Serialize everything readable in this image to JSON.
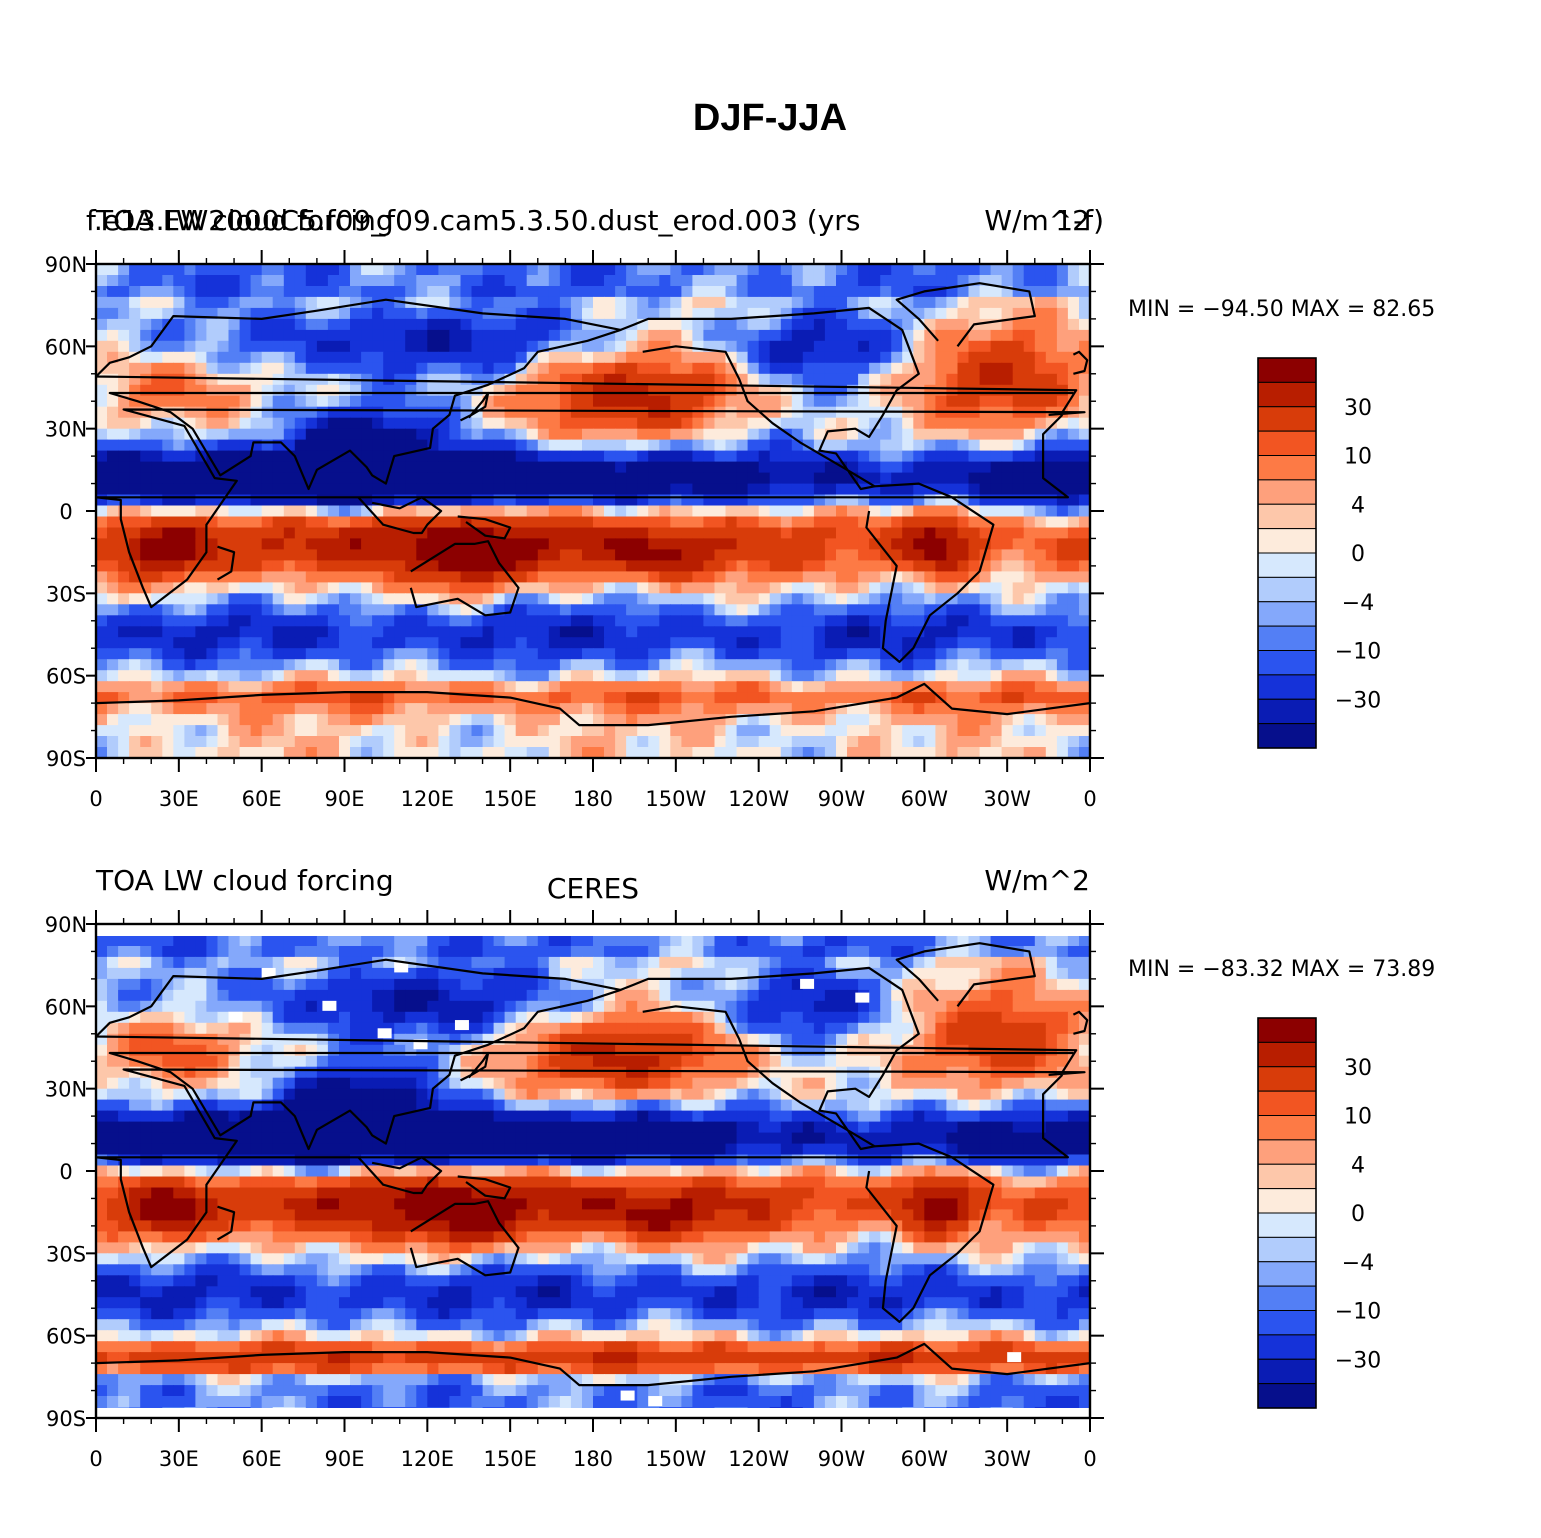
{
  "figure": {
    "title": "DJF-JJA",
    "panels": [
      {
        "left_label": "TOA LW cloud forcing",
        "overlay_label": "f.e13.FW2000C5.f09_f09.cam5.3.50.dust_erod.003 (yrs",
        "center_label": "",
        "right_label": "W/m^2",
        "overlay_right_label": "1-f)",
        "stats": "MIN = −94.50  MAX =   82.65"
      },
      {
        "left_label": "TOA LW cloud forcing",
        "overlay_label": "",
        "center_label": "CERES",
        "right_label": "W/m^2",
        "overlay_right_label": "",
        "stats": "MIN = −83.32  MAX =   73.89"
      }
    ]
  },
  "axes": {
    "lat_labels": [
      "90N",
      "60N",
      "30N",
      "0",
      "30S",
      "60S",
      "90S"
    ],
    "lon_labels": [
      "0",
      "30E",
      "60E",
      "90E",
      "120E",
      "150E",
      "180",
      "150W",
      "120W",
      "90W",
      "60W",
      "30W",
      "0"
    ]
  },
  "colorbar": {
    "labels": [
      "30",
      "10",
      "4",
      "0",
      "−4",
      "−10",
      "−30"
    ],
    "colors": [
      "#8c0000",
      "#b81e00",
      "#d83c0a",
      "#f25522",
      "#fd7a45",
      "#fea07c",
      "#fdc7aa",
      "#fdebdc",
      "#d6e8fd",
      "#b1ccfc",
      "#84a8fb",
      "#537ff5",
      "#2b54ef",
      "#1532d9",
      "#0a1cb4",
      "#060f8c"
    ]
  },
  "chart_data": [
    {
      "type": "heatmap",
      "title": "TOA LW cloud forcing",
      "subtitle": "f.e13.FW2000C5.f09_f09.cam5.3.50.dust_erod.003 (yrs 1-f)",
      "units": "W/m^2",
      "projection": "cylindrical equidistant",
      "lon_range": [
        0,
        360
      ],
      "lat_range": [
        -90,
        90
      ],
      "min": -94.5,
      "max": 82.65,
      "contour_levels": [
        -40,
        -30,
        -20,
        -15,
        -10,
        -6,
        -4,
        -2,
        0,
        2,
        4,
        6,
        10,
        15,
        20,
        30,
        40
      ]
    },
    {
      "type": "heatmap",
      "title": "TOA LW cloud forcing",
      "subtitle": "CERES",
      "units": "W/m^2",
      "projection": "cylindrical equidistant",
      "lon_range": [
        0,
        360
      ],
      "lat_range": [
        -90,
        90
      ],
      "min": -83.32,
      "max": 73.89,
      "contour_levels": [
        -40,
        -30,
        -20,
        -15,
        -10,
        -6,
        -4,
        -2,
        0,
        2,
        4,
        6,
        10,
        15,
        20,
        30,
        40
      ]
    }
  ]
}
